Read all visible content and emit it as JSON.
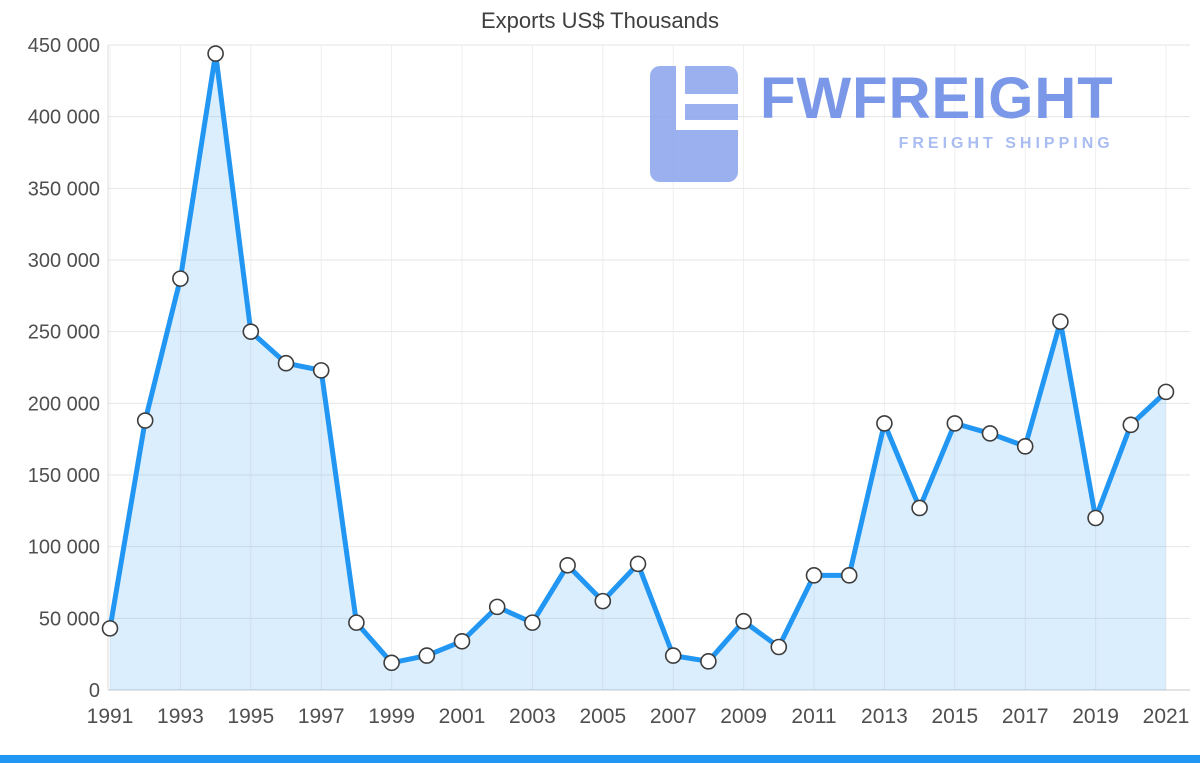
{
  "title": "Exports US$ Thousands",
  "logo": {
    "name": "FWFREIGHT",
    "tagline": "FREIGHT SHIPPING"
  },
  "colors": {
    "accent": "#2196f3",
    "line": "#2196f3",
    "fill": "rgba(33,150,243,0.16)",
    "marker_fill": "#ffffff",
    "marker_stroke": "#3d3d3d",
    "grid_horizontal": "#e6e6e6",
    "grid_vertical": "#efefef",
    "axis": "#c9c9c9",
    "tick_text": "#4f4f4f",
    "logo_primary": "#7b97e8",
    "logo_light": "#a9bdf2",
    "logo_glyph": "#93aaee"
  },
  "chart_data": {
    "type": "area",
    "title": "Exports US$ Thousands",
    "xlabel": "",
    "ylabel": "",
    "grid": true,
    "legend": false,
    "x": [
      1991,
      1992,
      1993,
      1994,
      1995,
      1996,
      1997,
      1998,
      1999,
      2000,
      2001,
      2002,
      2003,
      2004,
      2005,
      2006,
      2007,
      2008,
      2009,
      2010,
      2011,
      2012,
      2013,
      2014,
      2015,
      2016,
      2017,
      2018,
      2019,
      2020,
      2021
    ],
    "values": [
      43000,
      188000,
      287000,
      444000,
      250000,
      228000,
      223000,
      47000,
      19000,
      24000,
      34000,
      58000,
      47000,
      87000,
      62000,
      88000,
      24000,
      20000,
      48000,
      30000,
      80000,
      80000,
      186000,
      127000,
      186000,
      179000,
      170000,
      257000,
      120000,
      185000,
      208000
    ],
    "ylim": [
      0,
      450000
    ],
    "ytick_values": [
      0,
      50000,
      100000,
      150000,
      200000,
      250000,
      300000,
      350000,
      400000,
      450000
    ],
    "ytick_labels": [
      "0",
      "50 000",
      "100 000",
      "150 000",
      "200 000",
      "250 000",
      "300 000",
      "350 000",
      "400 000",
      "450 000"
    ],
    "xtick_labels": [
      "1991",
      "1993",
      "1995",
      "1997",
      "1999",
      "2001",
      "2003",
      "2005",
      "2007",
      "2009",
      "2011",
      "2013",
      "2015",
      "2017",
      "2019",
      "2021"
    ]
  }
}
